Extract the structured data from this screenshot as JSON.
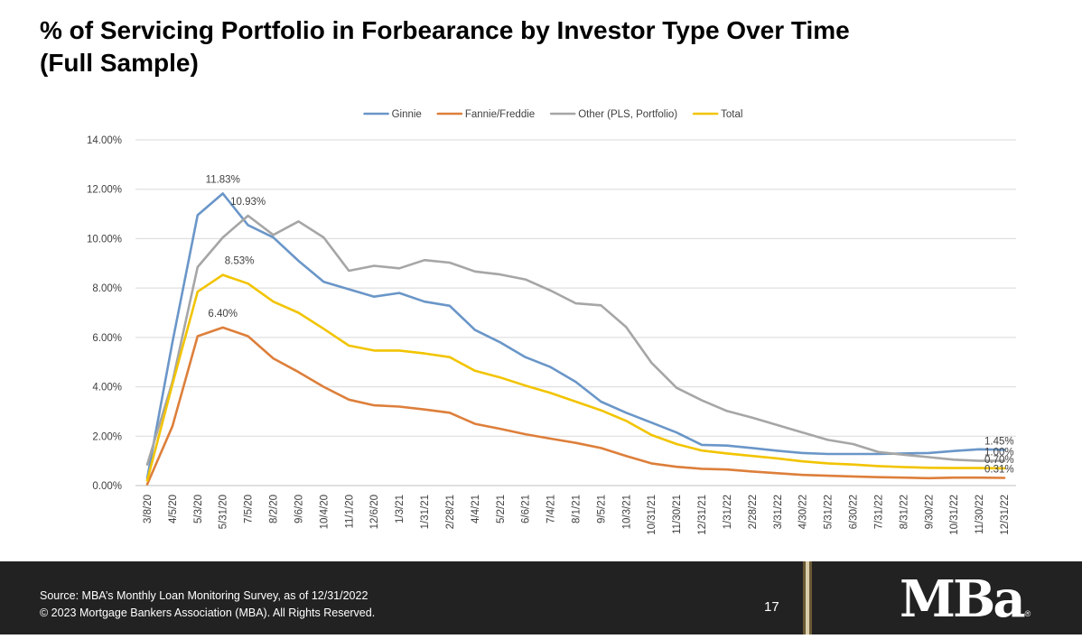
{
  "slide": {
    "title_line1": "% of Servicing Portfolio in Forbearance by Investor Type Over Time",
    "title_line2": "(Full Sample)"
  },
  "chart_data": {
    "type": "line",
    "title": "",
    "xlabel": "",
    "ylabel": "",
    "ylim": [
      0,
      14
    ],
    "ytick_labels": [
      "0.00%",
      "2.00%",
      "4.00%",
      "6.00%",
      "8.00%",
      "10.00%",
      "12.00%",
      "14.00%"
    ],
    "legend_position": "top-center",
    "grid": true,
    "x_labels": [
      "3/8/20",
      "4/5/20",
      "5/3/20",
      "5/31/20",
      "7/5/20",
      "8/2/20",
      "9/6/20",
      "10/4/20",
      "11/1/20",
      "12/6/20",
      "1/3/21",
      "1/31/21",
      "2/28/21",
      "4/4/21",
      "5/2/21",
      "6/6/21",
      "7/4/21",
      "8/1/21",
      "9/5/21",
      "10/3/21",
      "10/31/21",
      "11/30/21",
      "12/31/21",
      "1/31/22",
      "2/28/22",
      "3/31/22",
      "4/30/22",
      "5/31/22",
      "6/30/22",
      "7/31/22",
      "8/31/22",
      "9/30/22",
      "10/31/22",
      "11/30/22",
      "12/31/22"
    ],
    "series": [
      {
        "name": "Ginnie",
        "color": "#6a96c8",
        "values": [
          0.3,
          5.8,
          10.95,
          11.83,
          10.55,
          10.05,
          9.1,
          8.25,
          7.95,
          7.65,
          7.8,
          7.45,
          7.28,
          6.3,
          5.8,
          5.2,
          4.8,
          4.2,
          3.4,
          2.95,
          2.55,
          2.15,
          1.65,
          1.62,
          1.52,
          1.41,
          1.32,
          1.28,
          1.28,
          1.28,
          1.3,
          1.32,
          1.4,
          1.47,
          1.45
        ]
      },
      {
        "name": "Fannie/Freddie",
        "color": "#dd7f3b",
        "values": [
          0.05,
          2.4,
          6.05,
          6.4,
          6.05,
          5.15,
          4.6,
          4.0,
          3.48,
          3.25,
          3.2,
          3.08,
          2.95,
          2.5,
          2.3,
          2.08,
          1.9,
          1.73,
          1.52,
          1.2,
          0.9,
          0.76,
          0.68,
          0.65,
          0.57,
          0.5,
          0.43,
          0.4,
          0.37,
          0.34,
          0.32,
          0.3,
          0.32,
          0.32,
          0.31
        ]
      },
      {
        "name": "Other (PLS, Portfolio)",
        "color": "#a6a6a6",
        "values": [
          0.85,
          4.2,
          8.85,
          10.05,
          10.93,
          10.15,
          10.7,
          10.05,
          8.7,
          8.9,
          8.8,
          9.13,
          9.03,
          8.67,
          8.55,
          8.35,
          7.9,
          7.38,
          7.3,
          6.42,
          4.98,
          3.96,
          3.45,
          3.02,
          2.75,
          2.45,
          2.15,
          1.85,
          1.68,
          1.36,
          1.25,
          1.15,
          1.05,
          1.0,
          1.0
        ]
      },
      {
        "name": "Total",
        "color": "#f2c400",
        "values": [
          0.2,
          4.1,
          7.85,
          8.53,
          8.18,
          7.45,
          7.0,
          6.35,
          5.67,
          5.47,
          5.47,
          5.35,
          5.2,
          4.65,
          4.38,
          4.05,
          3.75,
          3.4,
          3.05,
          2.62,
          2.05,
          1.68,
          1.42,
          1.3,
          1.2,
          1.1,
          0.98,
          0.9,
          0.85,
          0.79,
          0.75,
          0.72,
          0.71,
          0.71,
          0.7
        ]
      }
    ],
    "annotations": [
      {
        "series": 0,
        "index": 3,
        "text": "11.83%",
        "position": "above"
      },
      {
        "series": 2,
        "index": 4,
        "text": "10.93%",
        "position": "above"
      },
      {
        "series": 3,
        "index": 3,
        "text": "8.53%",
        "position": "above-right"
      },
      {
        "series": 1,
        "index": 3,
        "text": "6.40%",
        "position": "above"
      },
      {
        "series": 0,
        "index": 34,
        "text": "1.45%",
        "position": "right"
      },
      {
        "series": 2,
        "index": 34,
        "text": "1.00%",
        "position": "right"
      },
      {
        "series": 3,
        "index": 34,
        "text": "0.70%",
        "position": "right"
      },
      {
        "series": 1,
        "index": 34,
        "text": "0.31%",
        "position": "right"
      }
    ]
  },
  "footer": {
    "source_line": "Source: MBA’s Monthly Loan Monitoring Survey, as of 12/31/2022",
    "copyright_line": "© 2023 Mortgage Bankers Association (MBA). All Rights Reserved.",
    "page_number": "17",
    "logo_text": "MBa",
    "logo_mark": "®"
  }
}
